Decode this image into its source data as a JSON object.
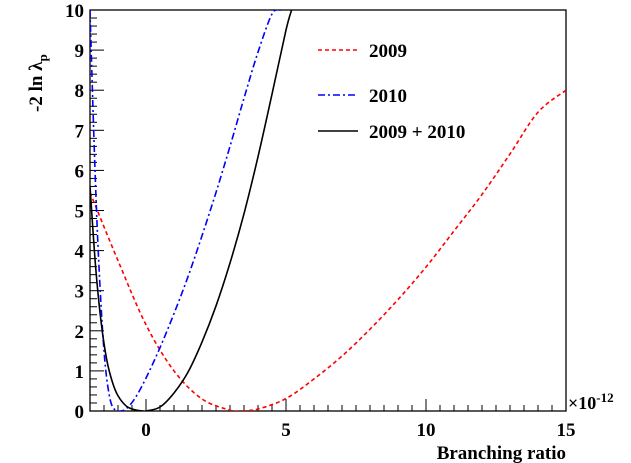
{
  "chart_data": {
    "type": "line",
    "title": "",
    "xlabel": "Branching ratio",
    "ylabel_main": "-2 ln λ",
    "ylabel_sub": "p",
    "x_multiplier_text": "×10",
    "x_multiplier_exp": "-12",
    "xlim": [
      -2.0,
      15.0
    ],
    "ylim": [
      0,
      10
    ],
    "x_ticks": [
      {
        "value": 0,
        "label": "0"
      },
      {
        "value": 5,
        "label": "5"
      },
      {
        "value": 10,
        "label": "10"
      },
      {
        "value": 15,
        "label": "15"
      }
    ],
    "y_ticks": [
      {
        "value": 0,
        "label": "0"
      },
      {
        "value": 1,
        "label": "1"
      },
      {
        "value": 2,
        "label": "2"
      },
      {
        "value": 3,
        "label": "3"
      },
      {
        "value": 4,
        "label": "4"
      },
      {
        "value": 5,
        "label": "5"
      },
      {
        "value": 6,
        "label": "6"
      },
      {
        "value": 7,
        "label": "7"
      },
      {
        "value": 8,
        "label": "8"
      },
      {
        "value": 9,
        "label": "9"
      },
      {
        "value": 10,
        "label": "10"
      }
    ],
    "grid": false,
    "legend_position": "top-right",
    "series": [
      {
        "name": "2009",
        "color": "#ff0000",
        "dash": "dashed",
        "x": [
          -2.0,
          -1.0,
          0.0,
          1.0,
          2.0,
          3.0,
          3.3,
          4.0,
          5.0,
          6.0,
          7.0,
          8.0,
          9.0,
          10.0,
          11.0,
          12.0,
          13.0,
          14.0,
          15.0
        ],
        "y": [
          5.45,
          3.75,
          2.15,
          1.0,
          0.3,
          0.02,
          0.0,
          0.05,
          0.31,
          0.8,
          1.37,
          2.04,
          2.78,
          3.59,
          4.49,
          5.4,
          6.41,
          7.45,
          8.0
        ]
      },
      {
        "name": "2010",
        "color": "#0000ff",
        "dash": "dashdot",
        "x": [
          -2.0,
          -1.85,
          -1.7,
          -1.5,
          -1.3,
          -1.1,
          -0.9,
          -0.7,
          -0.4,
          0.0,
          0.5,
          1.0,
          1.5,
          2.0,
          2.5,
          3.0,
          3.5,
          4.0,
          4.5,
          4.8
        ],
        "y": [
          10.0,
          6.6,
          3.9,
          1.5,
          0.35,
          0.02,
          0.0,
          0.06,
          0.31,
          0.82,
          1.58,
          2.43,
          3.35,
          4.37,
          5.45,
          6.6,
          7.8,
          8.95,
          9.9,
          10.0
        ]
      },
      {
        "name": "2009 + 2010",
        "color": "#000000",
        "dash": "solid",
        "x": [
          -2.0,
          -1.8,
          -1.6,
          -1.4,
          -1.2,
          -1.0,
          -0.7,
          -0.4,
          -0.1,
          0.0,
          0.5,
          1.0,
          1.5,
          2.0,
          2.5,
          3.0,
          3.5,
          4.0,
          4.5,
          5.0,
          5.2
        ],
        "y": [
          5.6,
          3.6,
          2.2,
          1.27,
          0.72,
          0.38,
          0.12,
          0.03,
          0.0,
          0.0,
          0.1,
          0.45,
          0.97,
          1.72,
          2.62,
          3.69,
          4.92,
          6.34,
          7.9,
          9.5,
          10.0
        ]
      }
    ]
  }
}
